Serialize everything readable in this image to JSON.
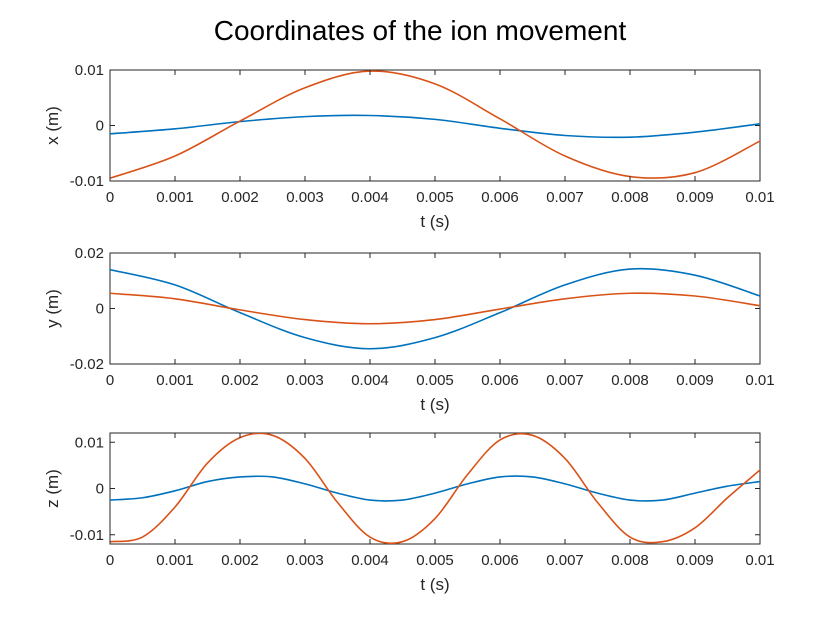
{
  "figure": {
    "title": "Coordinates of the ion movement"
  },
  "chart_data": [
    {
      "type": "line",
      "xlabel": "t (s)",
      "ylabel": "x (m)",
      "xlim": [
        0,
        0.01
      ],
      "ylim": [
        -0.01,
        0.01
      ],
      "x_ticks": [
        0,
        0.001,
        0.002,
        0.003,
        0.004,
        0.005,
        0.006,
        0.007,
        0.008,
        0.009,
        0.01
      ],
      "x_tick_labels": [
        "0",
        "0.001",
        "0.002",
        "0.003",
        "0.004",
        "0.005",
        "0.006",
        "0.007",
        "0.008",
        "0.009",
        "0.01"
      ],
      "y_ticks": [
        -0.01,
        0,
        0.01
      ],
      "y_tick_labels": [
        "-0.01",
        "0",
        "0.01"
      ],
      "grid": false,
      "series": [
        {
          "color": "#0072BD",
          "x": [
            0,
            0.001,
            0.002,
            0.003,
            0.004,
            0.005,
            0.006,
            0.007,
            0.008,
            0.009,
            0.01
          ],
          "values": [
            -0.0015,
            -0.0006,
            0.0007,
            0.0016,
            0.0018,
            0.0011,
            -0.0005,
            -0.0018,
            -0.0021,
            -0.0012,
            0.0003
          ]
        },
        {
          "color": "#D95319",
          "x": [
            0,
            0.001,
            0.002,
            0.003,
            0.004,
            0.005,
            0.006,
            0.007,
            0.008,
            0.009,
            0.01
          ],
          "values": [
            -0.0095,
            -0.0055,
            0.0008,
            0.0068,
            0.0098,
            0.0075,
            0.0012,
            -0.0055,
            -0.0092,
            -0.0085,
            -0.0028
          ]
        }
      ]
    },
    {
      "type": "line",
      "xlabel": "t (s)",
      "ylabel": "y (m)",
      "xlim": [
        0,
        0.01
      ],
      "ylim": [
        -0.02,
        0.02
      ],
      "x_ticks": [
        0,
        0.001,
        0.002,
        0.003,
        0.004,
        0.005,
        0.006,
        0.007,
        0.008,
        0.009,
        0.01
      ],
      "x_tick_labels": [
        "0",
        "0.001",
        "0.002",
        "0.003",
        "0.004",
        "0.005",
        "0.006",
        "0.007",
        "0.008",
        "0.009",
        "0.01"
      ],
      "y_ticks": [
        -0.02,
        0,
        0.02
      ],
      "y_tick_labels": [
        "-0.02",
        "0",
        "0.02"
      ],
      "grid": false,
      "series": [
        {
          "color": "#0072BD",
          "x": [
            0,
            0.001,
            0.002,
            0.003,
            0.004,
            0.005,
            0.006,
            0.007,
            0.008,
            0.009,
            0.01
          ],
          "values": [
            0.014,
            0.0085,
            -0.0015,
            -0.0105,
            -0.0145,
            -0.0105,
            -0.0015,
            0.0085,
            0.0142,
            0.012,
            0.0045
          ]
        },
        {
          "color": "#D95319",
          "x": [
            0,
            0.001,
            0.002,
            0.003,
            0.004,
            0.005,
            0.006,
            0.007,
            0.008,
            0.009,
            0.01
          ],
          "values": [
            0.0055,
            0.0035,
            -0.0005,
            -0.004,
            -0.0055,
            -0.004,
            -0.0002,
            0.0035,
            0.0055,
            0.0045,
            0.001
          ]
        }
      ]
    },
    {
      "type": "line",
      "xlabel": "t (s)",
      "ylabel": "z (m)",
      "xlim": [
        0,
        0.01
      ],
      "ylim": [
        -0.012,
        0.012
      ],
      "x_ticks": [
        0,
        0.001,
        0.002,
        0.003,
        0.004,
        0.005,
        0.006,
        0.007,
        0.008,
        0.009,
        0.01
      ],
      "x_tick_labels": [
        "0",
        "0.001",
        "0.002",
        "0.003",
        "0.004",
        "0.005",
        "0.006",
        "0.007",
        "0.008",
        "0.009",
        "0.01"
      ],
      "y_ticks": [
        -0.01,
        0,
        0.01
      ],
      "y_tick_labels": [
        "-0.01",
        "0",
        "0.01"
      ],
      "grid": false,
      "series": [
        {
          "color": "#0072BD",
          "x": [
            0,
            0.0005,
            0.001,
            0.0015,
            0.002,
            0.0025,
            0.003,
            0.0035,
            0.004,
            0.0045,
            0.005,
            0.0055,
            0.006,
            0.0065,
            0.007,
            0.0075,
            0.008,
            0.0085,
            0.009,
            0.0095,
            0.01
          ],
          "values": [
            -0.0025,
            -0.002,
            -0.0005,
            0.0015,
            0.0025,
            0.0025,
            0.001,
            -0.001,
            -0.0025,
            -0.0025,
            -0.001,
            0.001,
            0.0025,
            0.0025,
            0.001,
            -0.001,
            -0.0025,
            -0.0025,
            -0.001,
            0.0005,
            0.0015
          ]
        },
        {
          "color": "#D95319",
          "x": [
            0,
            0.0005,
            0.001,
            0.0015,
            0.002,
            0.0025,
            0.003,
            0.0035,
            0.004,
            0.0045,
            0.005,
            0.0055,
            0.006,
            0.0065,
            0.007,
            0.0075,
            0.008,
            0.0085,
            0.009,
            0.0095,
            0.01
          ],
          "values": [
            -0.0115,
            -0.0105,
            -0.004,
            0.0055,
            0.011,
            0.0115,
            0.0065,
            -0.003,
            -0.0105,
            -0.0115,
            -0.0065,
            0.003,
            0.0105,
            0.0115,
            0.0065,
            -0.003,
            -0.0105,
            -0.0115,
            -0.0085,
            -0.002,
            0.004
          ]
        }
      ]
    }
  ]
}
